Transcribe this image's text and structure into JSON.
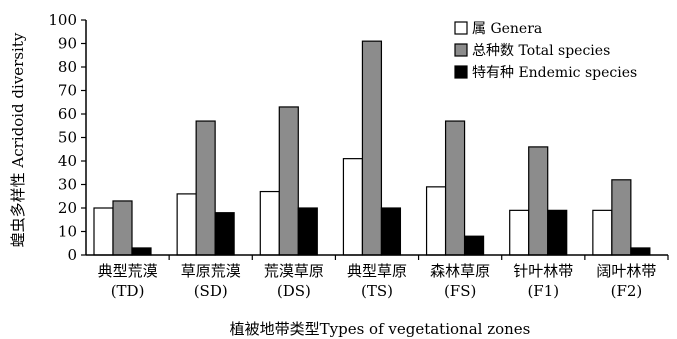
{
  "chart_data": {
    "type": "bar",
    "categories": [
      {
        "zh": "典型荒漠",
        "code": "(TD)"
      },
      {
        "zh": "草原荒漠",
        "code": "(SD)"
      },
      {
        "zh": "荒漠草原",
        "code": "(DS)"
      },
      {
        "zh": "典型草原",
        "code": "(TS)"
      },
      {
        "zh": "森林草原",
        "code": "(FS)"
      },
      {
        "zh": "针叶林带",
        "code": "(F1)"
      },
      {
        "zh": "阔叶林带",
        "code": "(F2)"
      }
    ],
    "series": [
      {
        "name": "属 Genera",
        "color": "#ffffff",
        "values": [
          20,
          26,
          27,
          41,
          29,
          19,
          19
        ]
      },
      {
        "name": "总种数 Total species",
        "color": "#8c8c8c",
        "values": [
          23,
          57,
          63,
          91,
          57,
          46,
          32
        ]
      },
      {
        "name": "特有种 Endemic species",
        "color": "#000000",
        "values": [
          3,
          18,
          20,
          20,
          8,
          19,
          3
        ]
      }
    ],
    "xlabel": "植被地带类型Types of vegetational zones",
    "ylabel": "蝗虫多样性 Acridoid diversity",
    "ylim": [
      0,
      100
    ],
    "yticks": [
      0,
      10,
      20,
      30,
      40,
      50,
      60,
      70,
      80,
      90,
      100
    ],
    "legend_position": "top-right",
    "grid": false
  }
}
